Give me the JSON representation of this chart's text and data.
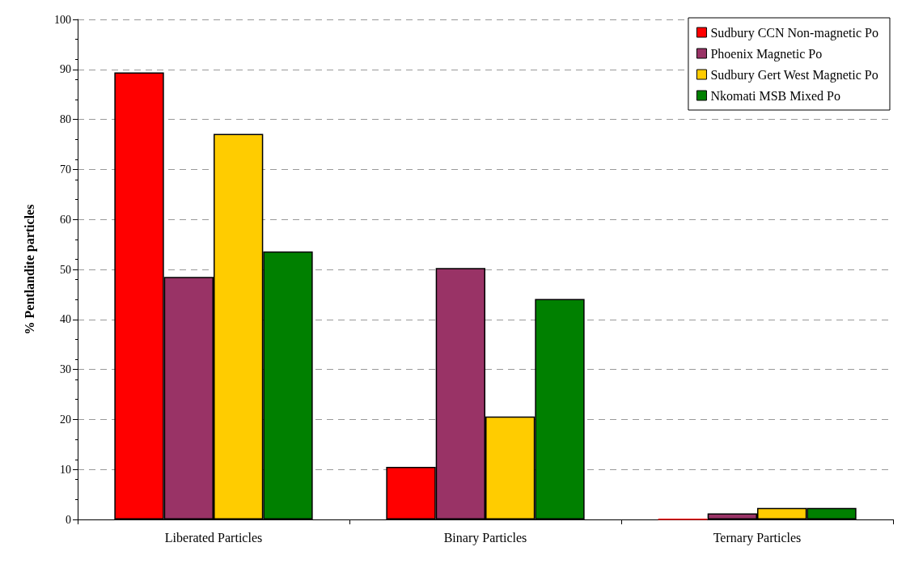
{
  "chart_data": {
    "type": "bar",
    "ylabel": "% Pentlandite particles",
    "categories": [
      "Liberated Particles",
      "Binary Particles",
      "Ternary Particles"
    ],
    "series": [
      {
        "name": "Sudbury CCN Non-magnetic Po",
        "color": "#ff0000",
        "values": [
          89.4,
          10.5,
          0.1
        ]
      },
      {
        "name": "Phoenix Magnetic Po",
        "color": "#993366",
        "values": [
          48.5,
          50.3,
          1.2
        ]
      },
      {
        "name": "Sudbury Gert West Magnetic Po",
        "color": "#ffcc00",
        "values": [
          77.1,
          20.6,
          2.3
        ]
      },
      {
        "name": "Nkomati MSB Mixed Po",
        "color": "#008000",
        "values": [
          53.6,
          44.1,
          2.3
        ]
      }
    ],
    "ylim": [
      0,
      100
    ],
    "yticks": [
      0,
      10,
      20,
      30,
      40,
      50,
      60,
      70,
      80,
      90,
      100
    ],
    "grid": "y",
    "legend": "top right"
  }
}
